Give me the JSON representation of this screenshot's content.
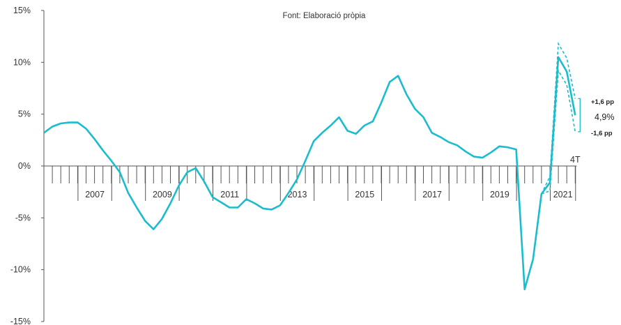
{
  "chart_data": {
    "type": "line",
    "note": "Font: Elaboració pròpia",
    "y_ticks": [
      "15%",
      "10%",
      "5%",
      "0%",
      "-5%",
      "-10%",
      "-15%"
    ],
    "ylim": [
      -15,
      15
    ],
    "x_labels": [
      {
        "label": "2007",
        "year": 2007
      },
      {
        "label": "2009",
        "year": 2009
      },
      {
        "label": "2011",
        "year": 2011
      },
      {
        "label": "2013",
        "year": 2013
      },
      {
        "label": "2015",
        "year": 2015
      },
      {
        "label": "2017",
        "year": 2017
      },
      {
        "label": "2019",
        "year": 2019
      },
      {
        "label": "2021",
        "year": 2021
      }
    ],
    "last_quarter_label": "4T",
    "line_color": "#1bbccd",
    "series": [
      {
        "values": [
          3.2,
          3.8,
          4.1,
          4.2,
          4.2,
          3.6,
          2.6,
          1.5,
          0.5,
          -0.6,
          -2.6,
          -4.0,
          -5.3,
          -6.1,
          -5.1,
          -3.6,
          -1.9,
          -0.6,
          -0.2,
          -1.5,
          -3.0,
          -3.5,
          -4.0,
          -4.0,
          -3.2,
          -3.6,
          -4.1,
          -4.2,
          -3.8,
          -2.6,
          -1.3,
          0.5,
          2.4,
          3.2,
          3.9,
          4.7,
          3.4,
          3.1,
          3.9,
          4.3,
          6.1,
          8.1,
          8.7,
          6.9,
          5.5,
          4.7,
          3.2,
          2.8,
          2.3,
          2.0,
          1.4,
          0.9,
          0.8,
          1.3,
          1.9,
          1.8,
          1.6,
          -11.9,
          -9.0,
          -2.7,
          -1.6,
          10.5,
          9.1,
          4.9
        ]
      }
    ],
    "uncertainty_band": {
      "upper": [
        -2.7,
        -1.0,
        11.8,
        10.4,
        6.5
      ],
      "lower": [
        -2.7,
        -2.4,
        9.2,
        7.8,
        3.3
      ]
    },
    "final_value_label": "4,9%",
    "band_upper_label": "+1,6 pp",
    "band_lower_label": "-1,6 pp"
  }
}
